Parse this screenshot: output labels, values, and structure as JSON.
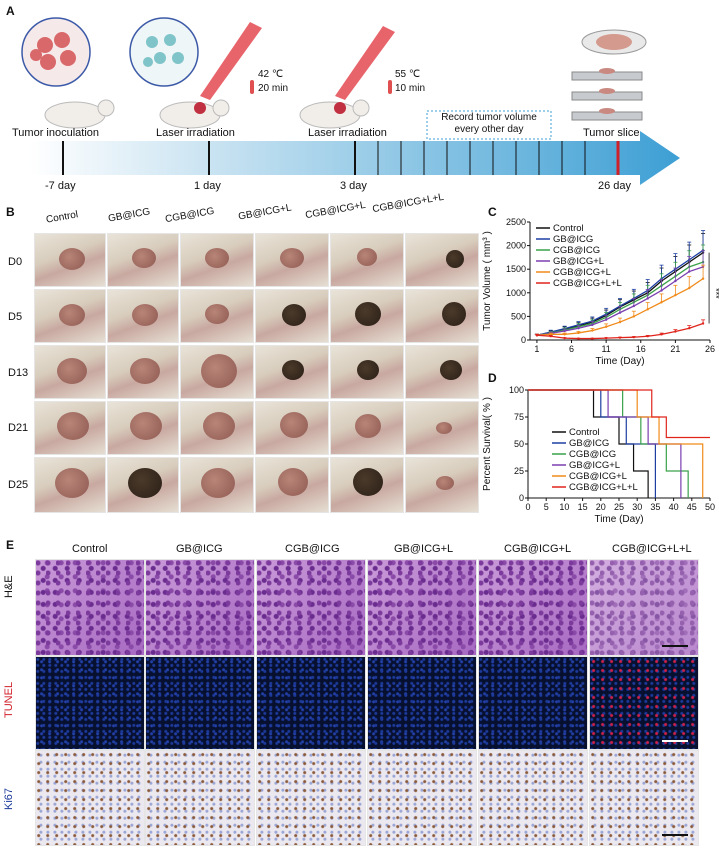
{
  "panel_labels": {
    "a": "A",
    "b": "B",
    "c": "C",
    "d": "D",
    "e": "E"
  },
  "timeline": {
    "steps": [
      {
        "label": "Tumor inoculation",
        "day": "-7 day"
      },
      {
        "label": "Laser irradiation",
        "day": "1 day",
        "temp": "42 ℃",
        "time": "20 min"
      },
      {
        "label": "Laser irradiation",
        "day": "3 day",
        "temp": "55 ℃",
        "time": "10 min"
      },
      {
        "label": "Tumor slice",
        "day": "26 day"
      }
    ],
    "record_box": "Record tumor volume\nevery other day"
  },
  "groups": [
    "Control",
    "GB@ICG",
    "CGB@ICG",
    "GB@ICG+L",
    "CGB@ICG+L",
    "CGB@ICG+L+L"
  ],
  "days_rows": [
    "D0",
    "D5",
    "D13",
    "D21",
    "D25"
  ],
  "panel_e": {
    "rows": [
      "H&E",
      "TUNEL",
      "Ki67"
    ],
    "row_colors": [
      "#222222",
      "#d0202a",
      "#1d3b9a"
    ]
  },
  "colors": {
    "Control": "#111111",
    "GB@ICG": "#1d3fa3",
    "CGB@ICG": "#3aa14a",
    "GB@ICG+L": "#7a3fb0",
    "CGB@ICG+L": "#f08a1a",
    "CGB@ICG+L+L": "#e0241c"
  },
  "chart_data": [
    {
      "type": "line",
      "ylabel": "Tumor Volume ( mm³ )",
      "xlabel": "Time (Day)",
      "xlim": [
        0,
        26
      ],
      "ylim": [
        0,
        2500
      ],
      "xticks": [
        1,
        6,
        11,
        16,
        21,
        26
      ],
      "yticks": [
        0,
        500,
        1000,
        1500,
        2000,
        2500
      ],
      "significance": "***",
      "x": [
        1,
        3,
        5,
        7,
        9,
        11,
        13,
        15,
        17,
        19,
        21,
        23,
        25
      ],
      "series": [
        {
          "name": "Control",
          "values": [
            100,
            160,
            230,
            300,
            380,
            520,
            700,
            850,
            1000,
            1250,
            1450,
            1650,
            1850
          ]
        },
        {
          "name": "GB@ICG",
          "values": [
            100,
            170,
            240,
            320,
            400,
            550,
            720,
            880,
            1050,
            1300,
            1500,
            1700,
            1900
          ]
        },
        {
          "name": "CGB@ICG",
          "values": [
            100,
            150,
            210,
            280,
            350,
            480,
            650,
            800,
            950,
            1150,
            1350,
            1550,
            1650
          ]
        },
        {
          "name": "GB@ICG+L",
          "values": [
            100,
            140,
            190,
            250,
            320,
            430,
            580,
            720,
            880,
            1050,
            1250,
            1450,
            1550
          ]
        },
        {
          "name": "CGB@ICG+L",
          "values": [
            100,
            120,
            120,
            150,
            200,
            280,
            380,
            500,
            650,
            800,
            950,
            1100,
            1300
          ]
        },
        {
          "name": "CGB@ICG+L+L",
          "values": [
            100,
            80,
            40,
            30,
            30,
            40,
            50,
            60,
            80,
            120,
            180,
            250,
            350
          ]
        }
      ]
    },
    {
      "type": "line",
      "ylabel": "Percent Survival( % )",
      "xlabel": "Time (Day)",
      "xlim": [
        0,
        50
      ],
      "ylim": [
        0,
        100
      ],
      "xticks": [
        0,
        5,
        10,
        15,
        20,
        25,
        30,
        35,
        40,
        45,
        50
      ],
      "yticks": [
        0,
        25,
        50,
        75,
        100
      ],
      "series": [
        {
          "name": "Control",
          "steps": [
            [
              0,
              100
            ],
            [
              18,
              100
            ],
            [
              18,
              75
            ],
            [
              25,
              75
            ],
            [
              25,
              50
            ],
            [
              29,
              50
            ],
            [
              29,
              25
            ],
            [
              33,
              25
            ],
            [
              33,
              0
            ]
          ]
        },
        {
          "name": "GB@ICG",
          "steps": [
            [
              0,
              100
            ],
            [
              20,
              100
            ],
            [
              20,
              75
            ],
            [
              27,
              75
            ],
            [
              27,
              50
            ],
            [
              35,
              50
            ],
            [
              35,
              0
            ]
          ]
        },
        {
          "name": "CGB@ICG",
          "steps": [
            [
              0,
              100
            ],
            [
              26,
              100
            ],
            [
              26,
              75
            ],
            [
              31,
              75
            ],
            [
              31,
              50
            ],
            [
              38,
              50
            ],
            [
              38,
              25
            ],
            [
              44,
              25
            ],
            [
              44,
              0
            ]
          ]
        },
        {
          "name": "GB@ICG+L",
          "steps": [
            [
              0,
              100
            ],
            [
              22,
              100
            ],
            [
              22,
              75
            ],
            [
              33,
              75
            ],
            [
              33,
              50
            ],
            [
              42,
              50
            ],
            [
              42,
              0
            ]
          ]
        },
        {
          "name": "CGB@ICG+L",
          "steps": [
            [
              0,
              100
            ],
            [
              30,
              100
            ],
            [
              30,
              75
            ],
            [
              36,
              75
            ],
            [
              36,
              50
            ],
            [
              48,
              50
            ],
            [
              48,
              0
            ]
          ]
        },
        {
          "name": "CGB@ICG+L+L",
          "steps": [
            [
              0,
              100
            ],
            [
              34,
              100
            ],
            [
              34,
              75
            ],
            [
              38,
              75
            ],
            [
              38,
              56
            ],
            [
              50,
              56
            ]
          ]
        }
      ]
    }
  ]
}
